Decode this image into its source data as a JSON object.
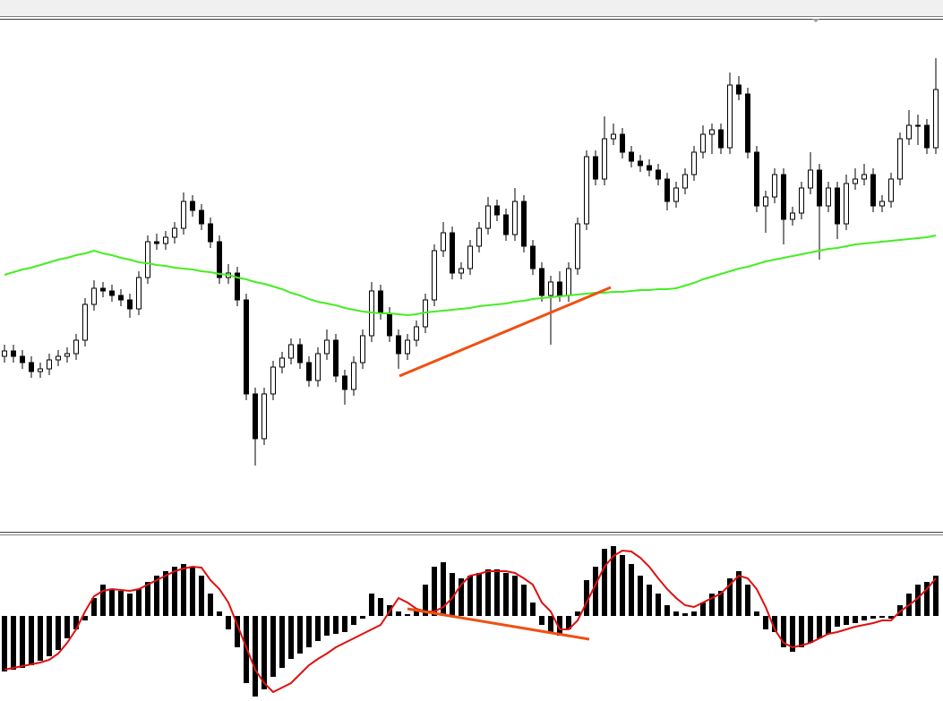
{
  "chart_data": [
    {
      "type": "candlestick",
      "ylim": [
        0,
        571
      ],
      "up_color": "#ffffff",
      "down_color": "#000000",
      "wick_color": "#000000",
      "open": [
        195,
        201,
        195,
        188,
        178,
        181,
        191,
        195,
        198,
        213,
        253,
        271,
        268,
        263,
        258,
        248,
        283,
        323,
        321,
        328,
        338,
        368,
        358,
        343,
        323,
        283,
        288,
        258,
        153,
        103,
        153,
        183,
        193,
        208,
        188,
        168,
        198,
        213,
        173,
        158,
        188,
        218,
        268,
        243,
        218,
        198,
        213,
        228,
        258,
        313,
        333,
        288,
        293,
        318,
        338,
        363,
        353,
        331,
        368,
        318,
        293,
        263,
        278,
        263,
        293,
        343,
        418,
        393,
        438,
        443,
        423,
        413,
        408,
        403,
        393,
        368,
        383,
        398,
        423,
        443,
        448,
        428,
        498,
        488,
        423,
        363,
        373,
        398,
        348,
        355,
        383,
        403,
        363,
        383,
        343,
        388,
        393,
        398,
        363,
        368,
        393,
        438,
        453,
        453,
        428
      ],
      "high": [
        208,
        208,
        202,
        195,
        188,
        198,
        202,
        205,
        220,
        260,
        280,
        278,
        275,
        270,
        265,
        290,
        330,
        332,
        335,
        345,
        378,
        375,
        365,
        350,
        330,
        298,
        295,
        265,
        160,
        160,
        190,
        200,
        215,
        215,
        195,
        205,
        225,
        220,
        180,
        195,
        225,
        278,
        275,
        250,
        225,
        220,
        235,
        265,
        320,
        345,
        340,
        300,
        325,
        345,
        373,
        370,
        360,
        383,
        375,
        325,
        300,
        285,
        290,
        300,
        350,
        425,
        425,
        463,
        455,
        450,
        430,
        420,
        415,
        410,
        400,
        390,
        405,
        430,
        453,
        455,
        455,
        512,
        508,
        495,
        430,
        380,
        405,
        405,
        362,
        390,
        423,
        410,
        390,
        390,
        398,
        405,
        410,
        405,
        375,
        400,
        445,
        470,
        465,
        460,
        528
      ],
      "low": [
        188,
        188,
        181,
        171,
        171,
        174,
        184,
        188,
        191,
        206,
        246,
        261,
        256,
        251,
        238,
        241,
        276,
        314,
        314,
        321,
        331,
        351,
        336,
        316,
        276,
        276,
        251,
        146,
        73,
        96,
        146,
        176,
        186,
        181,
        161,
        161,
        191,
        166,
        141,
        151,
        181,
        211,
        236,
        211,
        181,
        191,
        206,
        221,
        251,
        306,
        281,
        281,
        286,
        311,
        331,
        346,
        324,
        324,
        311,
        286,
        256,
        208,
        256,
        256,
        286,
        336,
        386,
        386,
        431,
        416,
        406,
        401,
        396,
        386,
        358,
        361,
        376,
        391,
        416,
        421,
        421,
        421,
        481,
        416,
        356,
        333,
        366,
        320,
        341,
        348,
        376,
        303,
        356,
        326,
        336,
        381,
        386,
        356,
        356,
        361,
        386,
        431,
        431,
        421,
        421
      ],
      "close": [
        201,
        195,
        188,
        178,
        181,
        191,
        195,
        198,
        213,
        253,
        271,
        268,
        263,
        258,
        248,
        283,
        323,
        321,
        328,
        338,
        368,
        358,
        343,
        323,
        283,
        288,
        258,
        153,
        103,
        153,
        183,
        193,
        208,
        188,
        168,
        198,
        213,
        173,
        158,
        188,
        218,
        268,
        243,
        218,
        198,
        213,
        228,
        258,
        313,
        333,
        288,
        293,
        318,
        338,
        363,
        353,
        331,
        368,
        318,
        293,
        263,
        278,
        263,
        293,
        343,
        418,
        393,
        438,
        443,
        423,
        413,
        408,
        403,
        393,
        368,
        383,
        398,
        423,
        443,
        448,
        428,
        498,
        488,
        423,
        363,
        373,
        398,
        348,
        355,
        383,
        403,
        363,
        383,
        343,
        388,
        393,
        398,
        363,
        368,
        393,
        438,
        453,
        453,
        428,
        493
      ],
      "ma": {
        "color": "#44ee22",
        "values": [
          286,
          289,
          292,
          294,
          297,
          300,
          303,
          305,
          308,
          310,
          313,
          310,
          308,
          305,
          303,
          300,
          299,
          297,
          296,
          294,
          293,
          292,
          290,
          289,
          287,
          286,
          283,
          281,
          278,
          276,
          273,
          270,
          266,
          263,
          259,
          256,
          254,
          252,
          249,
          247,
          245,
          244,
          243,
          243,
          242,
          241,
          242,
          244,
          245,
          246,
          247,
          248,
          249,
          251,
          252,
          253,
          254,
          256,
          257,
          259,
          260,
          261,
          262,
          263,
          264,
          265,
          266,
          266,
          267,
          267,
          268,
          269,
          269,
          270,
          270,
          271,
          274,
          277,
          281,
          284,
          287,
          290,
          293,
          295,
          298,
          301,
          303,
          305,
          307,
          309,
          311,
          313,
          315,
          316,
          318,
          320,
          321,
          322,
          323,
          324,
          325,
          326,
          327,
          328,
          330
        ]
      }
    },
    {
      "type": "bar",
      "ylim": [
        -95,
        88
      ],
      "color": "#000000",
      "values": [
        -62,
        -60,
        -58,
        -55,
        -50,
        -45,
        -38,
        -25,
        -15,
        -5,
        20,
        35,
        30,
        28,
        25,
        30,
        38,
        45,
        50,
        55,
        58,
        55,
        45,
        25,
        5,
        -15,
        -35,
        -75,
        -90,
        -82,
        -68,
        -58,
        -48,
        -42,
        -35,
        -28,
        -22,
        -20,
        -18,
        -10,
        -3,
        25,
        20,
        12,
        5,
        2,
        8,
        35,
        55,
        60,
        48,
        42,
        45,
        48,
        52,
        52,
        48,
        45,
        35,
        15,
        -10,
        -18,
        -22,
        -15,
        5,
        40,
        55,
        75,
        78,
        68,
        58,
        45,
        35,
        25,
        12,
        5,
        3,
        5,
        15,
        25,
        28,
        42,
        50,
        35,
        5,
        -15,
        -18,
        -35,
        -40,
        -35,
        -30,
        -25,
        -20,
        -12,
        -10,
        -8,
        -5,
        -3,
        -2,
        -3,
        12,
        25,
        35,
        38,
        45
      ],
      "signal": {
        "color": "#e01010",
        "values": [
          -60,
          -58,
          -56,
          -54,
          -52,
          -49,
          -42,
          -30,
          -15,
          5,
          22,
          28,
          30,
          29,
          28,
          30,
          35,
          40,
          45,
          50,
          53,
          55,
          54,
          40,
          30,
          15,
          -10,
          -35,
          -60,
          -75,
          -85,
          -80,
          -75,
          -65,
          -55,
          -48,
          -42,
          -35,
          -30,
          -25,
          -20,
          -15,
          -10,
          5,
          20,
          15,
          8,
          5,
          5,
          10,
          20,
          35,
          45,
          47,
          50,
          50,
          50,
          48,
          42,
          35,
          15,
          5,
          -15,
          -15,
          -5,
          15,
          35,
          55,
          67,
          73,
          72,
          65,
          55,
          42,
          30,
          20,
          12,
          10,
          15,
          20,
          25,
          35,
          45,
          42,
          30,
          10,
          -15,
          -30,
          -35,
          -33,
          -30,
          -25,
          -20,
          -18,
          -15,
          -12,
          -10,
          -8,
          -5,
          -5,
          5,
          12,
          20,
          30,
          42
        ]
      }
    }
  ]
}
